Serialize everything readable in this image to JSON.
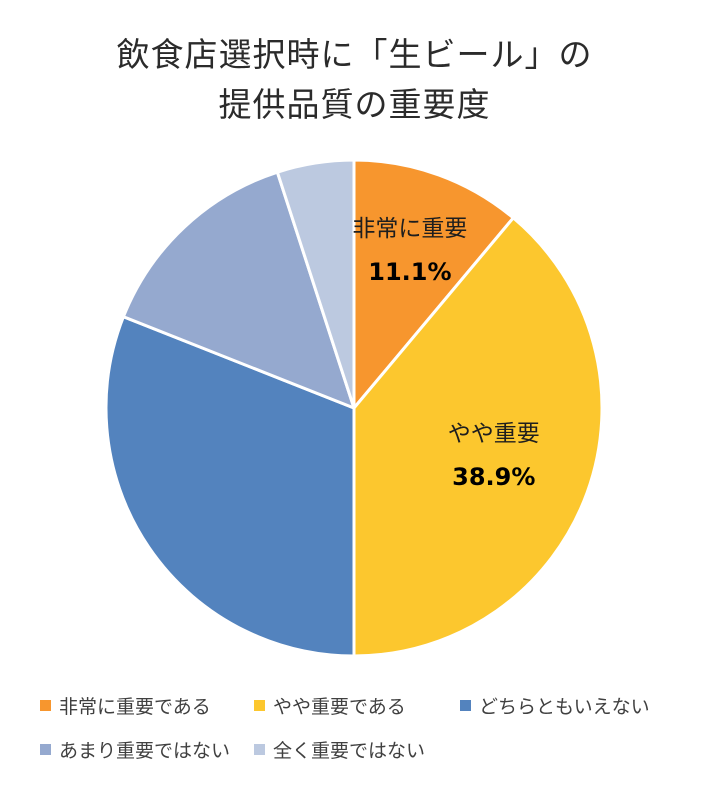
{
  "title_lines": [
    "飲食店選択時に「生ビール」の",
    "提供品質の重要度"
  ],
  "chart_data": {
    "type": "pie",
    "title": "飲食店選択時に「生ビール」の提供品質の重要度",
    "start_angle_deg": 0,
    "direction": "clockwise",
    "slices": [
      {
        "name": "非常に重要である",
        "value": 11.1,
        "color": "#F7962E",
        "label": "非常に重要",
        "value_label": "11.1%"
      },
      {
        "name": "やや重要である",
        "value": 38.9,
        "color": "#FCC72E",
        "label": "やや重要",
        "value_label": "38.9%"
      },
      {
        "name": "どちらともいえない",
        "value": 31.0,
        "color": "#5383BE",
        "label": "",
        "value_label": ""
      },
      {
        "name": "あまり重要ではない",
        "value": 14.0,
        "color": "#95A9CF",
        "label": "",
        "value_label": ""
      },
      {
        "name": "全く重要ではない",
        "value": 5.0,
        "color": "#BCC9E0",
        "label": "",
        "value_label": ""
      }
    ],
    "legend_position": "bottom"
  }
}
